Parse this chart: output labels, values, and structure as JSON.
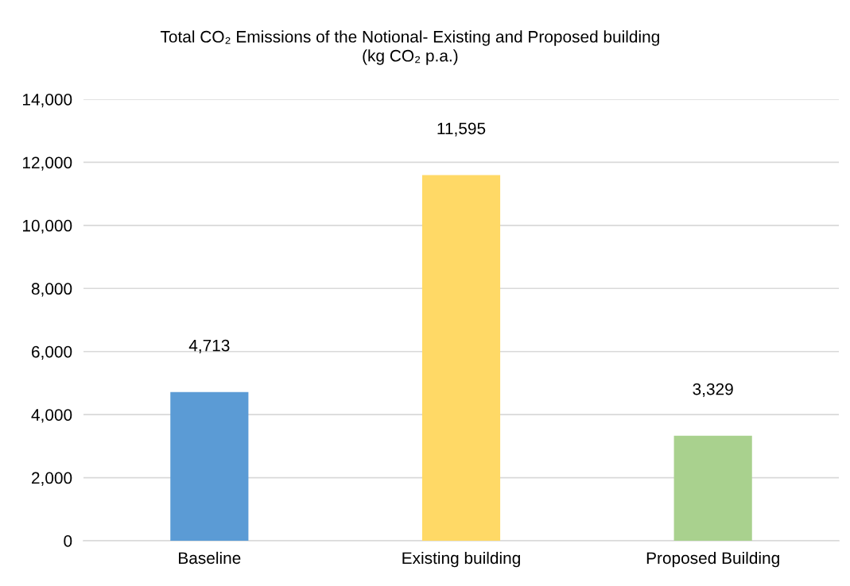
{
  "chart_data": {
    "type": "bar",
    "title": "Total CO₂ Emissions of the Notional- Existing and Proposed building\n(kg CO₂ p.a.)",
    "categories": [
      "Baseline",
      "Existing building",
      "Proposed Building"
    ],
    "values": [
      4713,
      11595,
      3329
    ],
    "colors": [
      "#5b9bd5",
      "#ffd966",
      "#a9d18e"
    ],
    "value_labels": [
      "4,713",
      "11,595",
      "3,329"
    ],
    "ylim": [
      0,
      14000
    ],
    "yticks": [
      {
        "value": 0,
        "label": "0"
      },
      {
        "value": 2000,
        "label": "2,000"
      },
      {
        "value": 4000,
        "label": "4,000"
      },
      {
        "value": 6000,
        "label": "6,000"
      },
      {
        "value": 8000,
        "label": "8,000"
      },
      {
        "value": 10000,
        "label": "10,000"
      },
      {
        "value": 12000,
        "label": "12,000"
      },
      {
        "value": 14000,
        "label": "14,000"
      }
    ],
    "grid": "y"
  }
}
